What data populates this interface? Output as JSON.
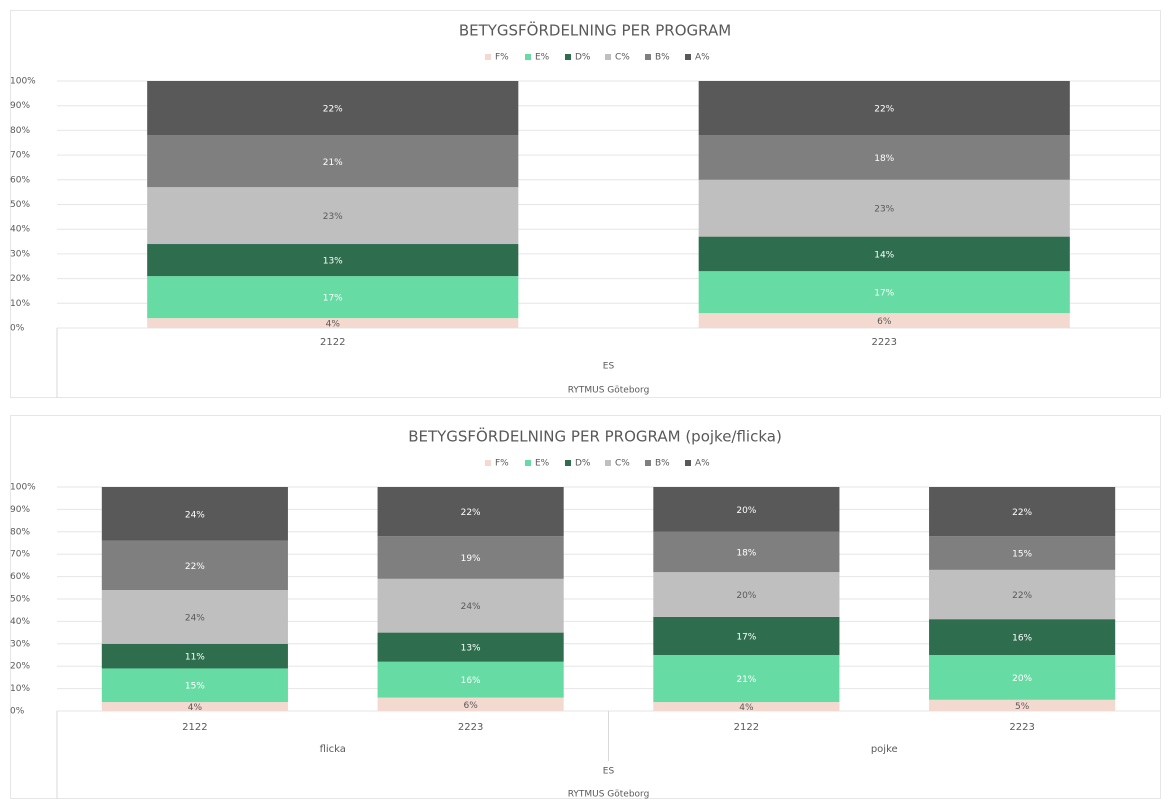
{
  "chart_data": [
    {
      "type": "stacked_bar",
      "title": "BETYGSFÖRDELNING PER PROGRAM",
      "categories": [
        "2122",
        "2223"
      ],
      "x_groups": [],
      "x_outer_labels": [
        "ES",
        "RYTMUS Göteborg"
      ],
      "ylim": [
        0,
        100
      ],
      "yticks": [
        {
          "value": 0,
          "label": "0%"
        },
        {
          "value": 10,
          "label": "10%"
        },
        {
          "value": 20,
          "label": "20%"
        },
        {
          "value": 30,
          "label": "30%"
        },
        {
          "value": 40,
          "label": "40%"
        },
        {
          "value": 50,
          "label": "50%"
        },
        {
          "value": 60,
          "label": "60%"
        },
        {
          "value": 70,
          "label": "70%"
        },
        {
          "value": 80,
          "label": "80%"
        },
        {
          "value": 90,
          "label": "90%"
        },
        {
          "value": 100,
          "label": "100%"
        }
      ],
      "grid": true,
      "legend": "top",
      "series": [
        {
          "name": "F%",
          "color": "#f4d9d0",
          "values": [
            4,
            6
          ],
          "value_labels": [
            "4%",
            "6%"
          ]
        },
        {
          "name": "E%",
          "color": "#66dca4",
          "values": [
            17,
            17
          ],
          "value_labels": [
            "17%",
            "17%"
          ]
        },
        {
          "name": "D%",
          "color": "#2e6e4e",
          "values": [
            13,
            14
          ],
          "value_labels": [
            "13%",
            "14%"
          ]
        },
        {
          "name": "C%",
          "color": "#bfbfbf",
          "values": [
            23,
            23
          ],
          "value_labels": [
            "23%",
            "23%"
          ]
        },
        {
          "name": "B%",
          "color": "#7f7f7f",
          "values": [
            21,
            18
          ],
          "value_labels": [
            "21%",
            "18%"
          ]
        },
        {
          "name": "A%",
          "color": "#595959",
          "values": [
            22,
            22
          ],
          "value_labels": [
            "22%",
            "22%"
          ]
        }
      ]
    },
    {
      "type": "stacked_bar",
      "title": "BETYGSFÖRDELNING PER PROGRAM (pojke/flicka)",
      "categories": [
        "2122",
        "2223",
        "2122",
        "2223"
      ],
      "x_groups": [
        "flicka",
        "pojke"
      ],
      "x_outer_labels": [
        "ES",
        "RYTMUS Göteborg"
      ],
      "ylim": [
        0,
        100
      ],
      "yticks": [
        {
          "value": 0,
          "label": "0%"
        },
        {
          "value": 10,
          "label": "10%"
        },
        {
          "value": 20,
          "label": "20%"
        },
        {
          "value": 30,
          "label": "30%"
        },
        {
          "value": 40,
          "label": "40%"
        },
        {
          "value": 50,
          "label": "50%"
        },
        {
          "value": 60,
          "label": "60%"
        },
        {
          "value": 70,
          "label": "70%"
        },
        {
          "value": 80,
          "label": "80%"
        },
        {
          "value": 90,
          "label": "90%"
        },
        {
          "value": 100,
          "label": "100%"
        }
      ],
      "grid": true,
      "legend": "top",
      "series": [
        {
          "name": "F%",
          "color": "#f4d9d0",
          "values": [
            4,
            6,
            4,
            5
          ],
          "value_labels": [
            "4%",
            "6%",
            "4%",
            "5%"
          ]
        },
        {
          "name": "E%",
          "color": "#66dca4",
          "values": [
            15,
            16,
            21,
            20
          ],
          "value_labels": [
            "15%",
            "16%",
            "21%",
            "20%"
          ]
        },
        {
          "name": "D%",
          "color": "#2e6e4e",
          "values": [
            11,
            13,
            17,
            16
          ],
          "value_labels": [
            "11%",
            "13%",
            "17%",
            "16%"
          ]
        },
        {
          "name": "C%",
          "color": "#bfbfbf",
          "values": [
            24,
            24,
            20,
            22
          ],
          "value_labels": [
            "24%",
            "24%",
            "20%",
            "22%"
          ]
        },
        {
          "name": "B%",
          "color": "#7f7f7f",
          "values": [
            22,
            19,
            18,
            15
          ],
          "value_labels": [
            "22%",
            "19%",
            "18%",
            "15%"
          ]
        },
        {
          "name": "A%",
          "color": "#595959",
          "values": [
            24,
            22,
            20,
            22
          ],
          "value_labels": [
            "24%",
            "22%",
            "20%",
            "22%"
          ]
        }
      ]
    }
  ]
}
